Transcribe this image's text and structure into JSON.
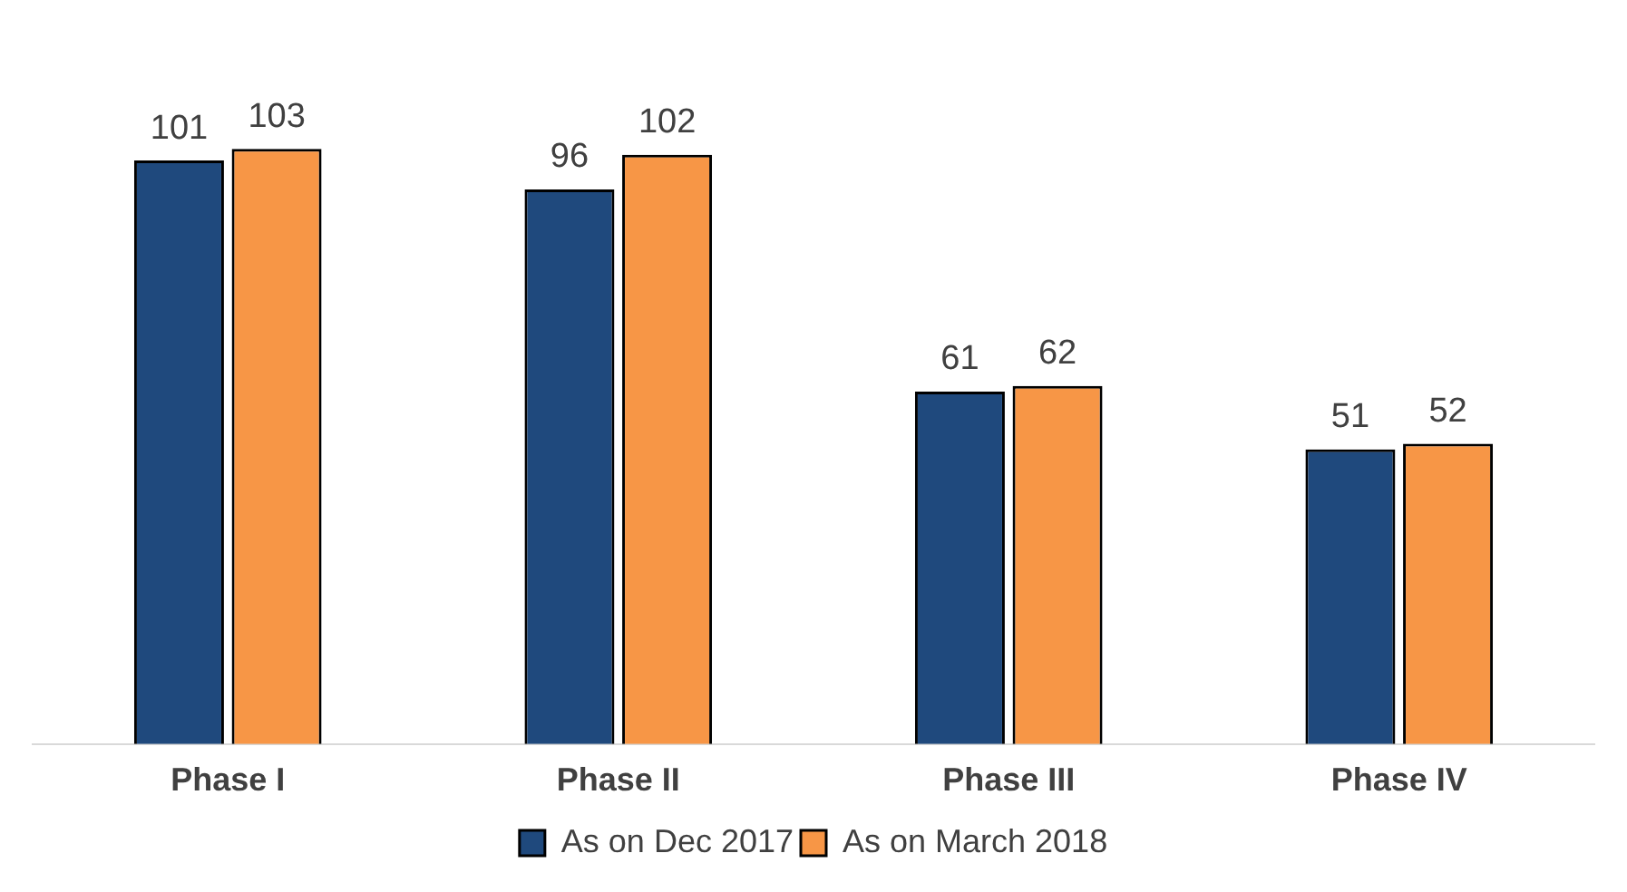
{
  "chart_data": {
    "type": "bar",
    "categories": [
      "Phase I",
      "Phase II",
      "Phase III",
      "Phase IV"
    ],
    "series": [
      {
        "name": "As on Dec 2017",
        "color": "#1f497d",
        "values": [
          101,
          96,
          61,
          51
        ]
      },
      {
        "name": "As on March 2018",
        "color": "#f79646",
        "values": [
          103,
          102,
          62,
          52
        ]
      }
    ],
    "data_labels": true,
    "grid": false,
    "legend": "bottom"
  }
}
